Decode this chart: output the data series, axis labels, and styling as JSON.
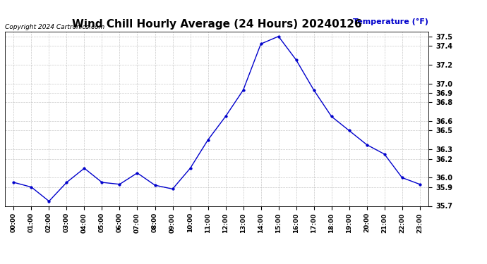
{
  "title": "Wind Chill Hourly Average (24 Hours) 20240126",
  "ylabel": "Temperature (°F)",
  "copyright": "Copyright 2024 Cartronics.com",
  "hours": [
    "00:00",
    "01:00",
    "02:00",
    "03:00",
    "04:00",
    "05:00",
    "06:00",
    "07:00",
    "08:00",
    "09:00",
    "10:00",
    "11:00",
    "12:00",
    "13:00",
    "14:00",
    "15:00",
    "16:00",
    "17:00",
    "18:00",
    "19:00",
    "20:00",
    "21:00",
    "22:00",
    "23:00"
  ],
  "values": [
    35.95,
    35.9,
    35.75,
    35.95,
    36.1,
    35.95,
    35.93,
    36.05,
    35.92,
    35.88,
    36.1,
    36.4,
    36.65,
    36.93,
    37.42,
    37.5,
    37.25,
    36.93,
    36.65,
    36.5,
    36.35,
    36.25,
    36.0,
    35.93
  ],
  "line_color": "#0000cc",
  "marker_color": "#0000cc",
  "background_color": "#ffffff",
  "grid_color": "#bbbbbb",
  "title_fontsize": 11,
  "ylabel_color": "#0000cc",
  "copyright_color": "#000000",
  "ylim_min": 35.7,
  "ylim_max": 37.55,
  "yticks": [
    35.7,
    35.9,
    36.0,
    36.2,
    36.3,
    36.5,
    36.6,
    36.8,
    36.9,
    37.0,
    37.2,
    37.4,
    37.5
  ],
  "ytick_labels": [
    "35.7",
    "35.9",
    "36.0",
    "36.2",
    "36.3",
    "36.5",
    "36.6",
    "36.8",
    "36.9",
    "37.0",
    "37.2",
    "37.4",
    "37.5"
  ]
}
